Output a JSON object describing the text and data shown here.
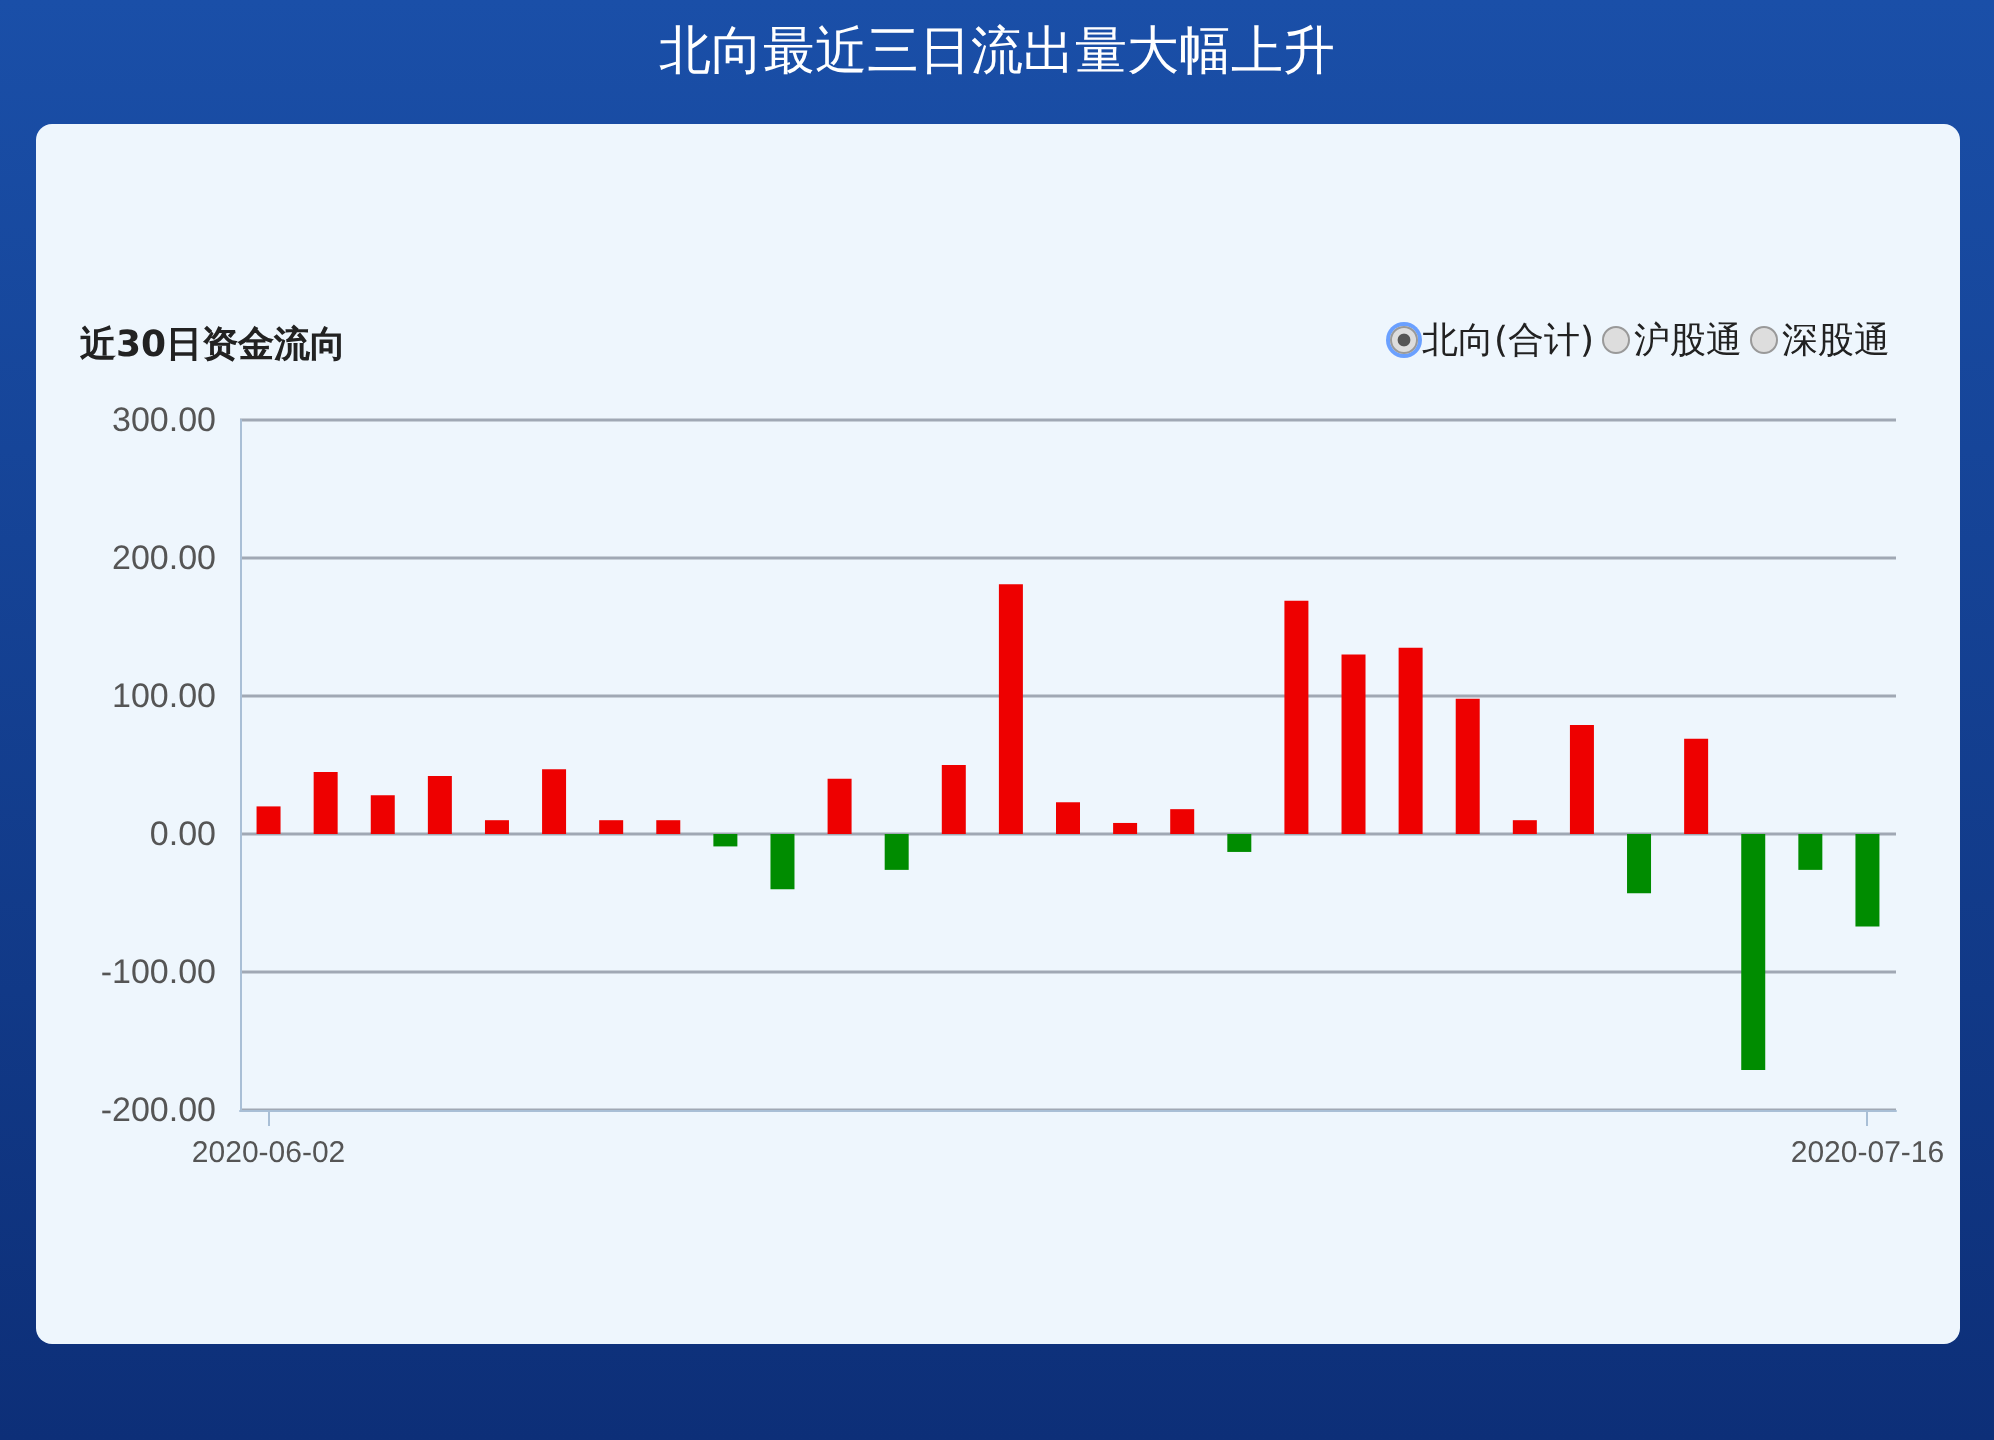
{
  "chart_data": {
    "type": "bar",
    "title": "北向最近三日流出量大幅上升",
    "subtitle": "近30日资金流向",
    "annotations": [
      "北向(合计)",
      "沪股通",
      "深股通"
    ],
    "categories": [
      "2020-06-02",
      null,
      null,
      null,
      null,
      null,
      null,
      null,
      null,
      null,
      null,
      null,
      null,
      null,
      null,
      null,
      null,
      null,
      null,
      null,
      null,
      null,
      null,
      null,
      null,
      null,
      null,
      null,
      "2020-07-16"
    ],
    "values": [
      20,
      45,
      28,
      42,
      10,
      47,
      10,
      10,
      -9,
      -40,
      40,
      -26,
      50,
      181,
      23,
      8,
      18,
      -13,
      169,
      130,
      135,
      98,
      10,
      79,
      -43,
      69,
      -171,
      -26,
      -67
    ],
    "colors": [
      "#ee0000",
      "#ee0000",
      "#ee0000",
      "#ee0000",
      "#ee0000",
      "#ee0000",
      "#ee0000",
      "#ee0000",
      "#008c00",
      "#008c00",
      "#ee0000",
      "#008c00",
      "#ee0000",
      "#ee0000",
      "#ee0000",
      "#ee0000",
      "#ee0000",
      "#008c00",
      "#ee0000",
      "#ee0000",
      "#ee0000",
      "#ee0000",
      "#ee0000",
      "#ee0000",
      "#008c00",
      "#ee0000",
      "#008c00",
      "#008c00",
      "#008c00"
    ],
    "ylim": [
      -200,
      300
    ],
    "yticks": [
      {
        "value": -200,
        "label": "-200.00"
      },
      {
        "value": -100,
        "label": "-100.00"
      },
      {
        "value": 0,
        "label": "0.00"
      },
      {
        "value": 100,
        "label": "100.00"
      },
      {
        "value": 200,
        "label": "200.00"
      },
      {
        "value": 300,
        "label": "300.00"
      }
    ],
    "grid": "y"
  }
}
